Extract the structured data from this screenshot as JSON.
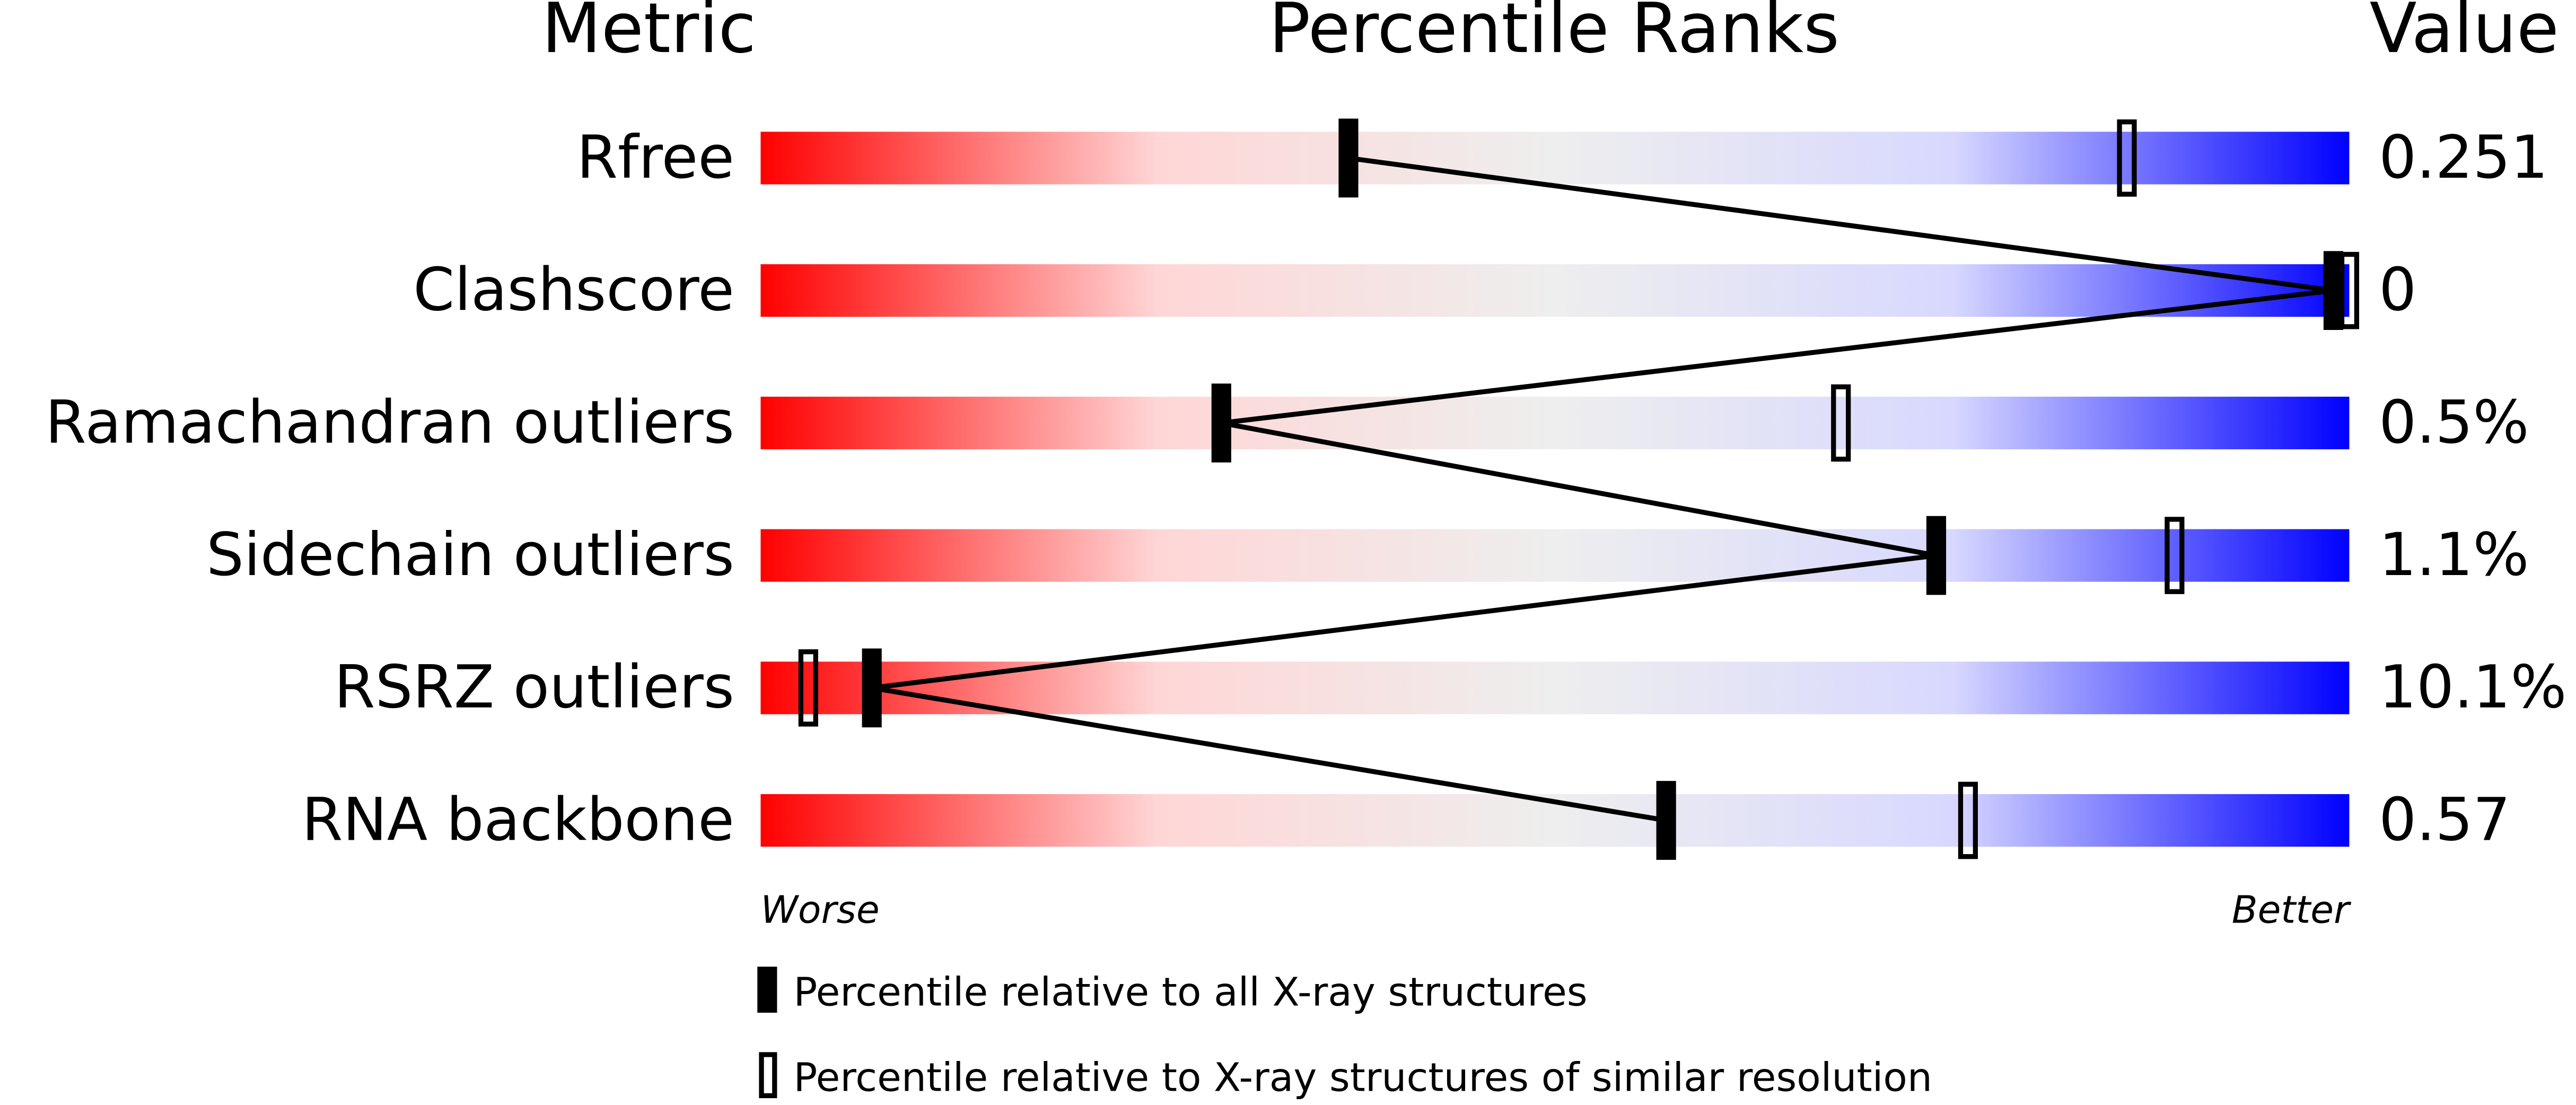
{
  "chart_data": {
    "type": "percentile",
    "headers": [
      "Metric",
      "Percentile Ranks",
      "Value"
    ],
    "axis_ends": [
      "Worse",
      "Better"
    ],
    "categories": [
      "Rfree",
      "Clashscore",
      "Ramachandran outliers",
      "Sidechain outliers",
      "RSRZ outliers",
      "RNA backbone"
    ],
    "metric_values": [
      "0.251",
      "0",
      "0.5%",
      "1.1%",
      "10.1%",
      "0.57"
    ],
    "xlim": [
      0,
      100
    ],
    "gradient": [
      "#ff0000",
      "#ffd6d6",
      "#eeeeee",
      "#d8d8ff",
      "#0000ff"
    ],
    "series": [
      {
        "name": "Percentile relative to all X-ray structures",
        "color": "#000000",
        "marker": "filled",
        "connect": true,
        "values": [
          37,
          99,
          29,
          74,
          7,
          57
        ]
      },
      {
        "name": "Percentile relative to X-ray structures of similar resolution",
        "color": "#000000",
        "marker": "hollow",
        "connect": false,
        "values": [
          86,
          100,
          68,
          89,
          3,
          76
        ]
      }
    ]
  }
}
